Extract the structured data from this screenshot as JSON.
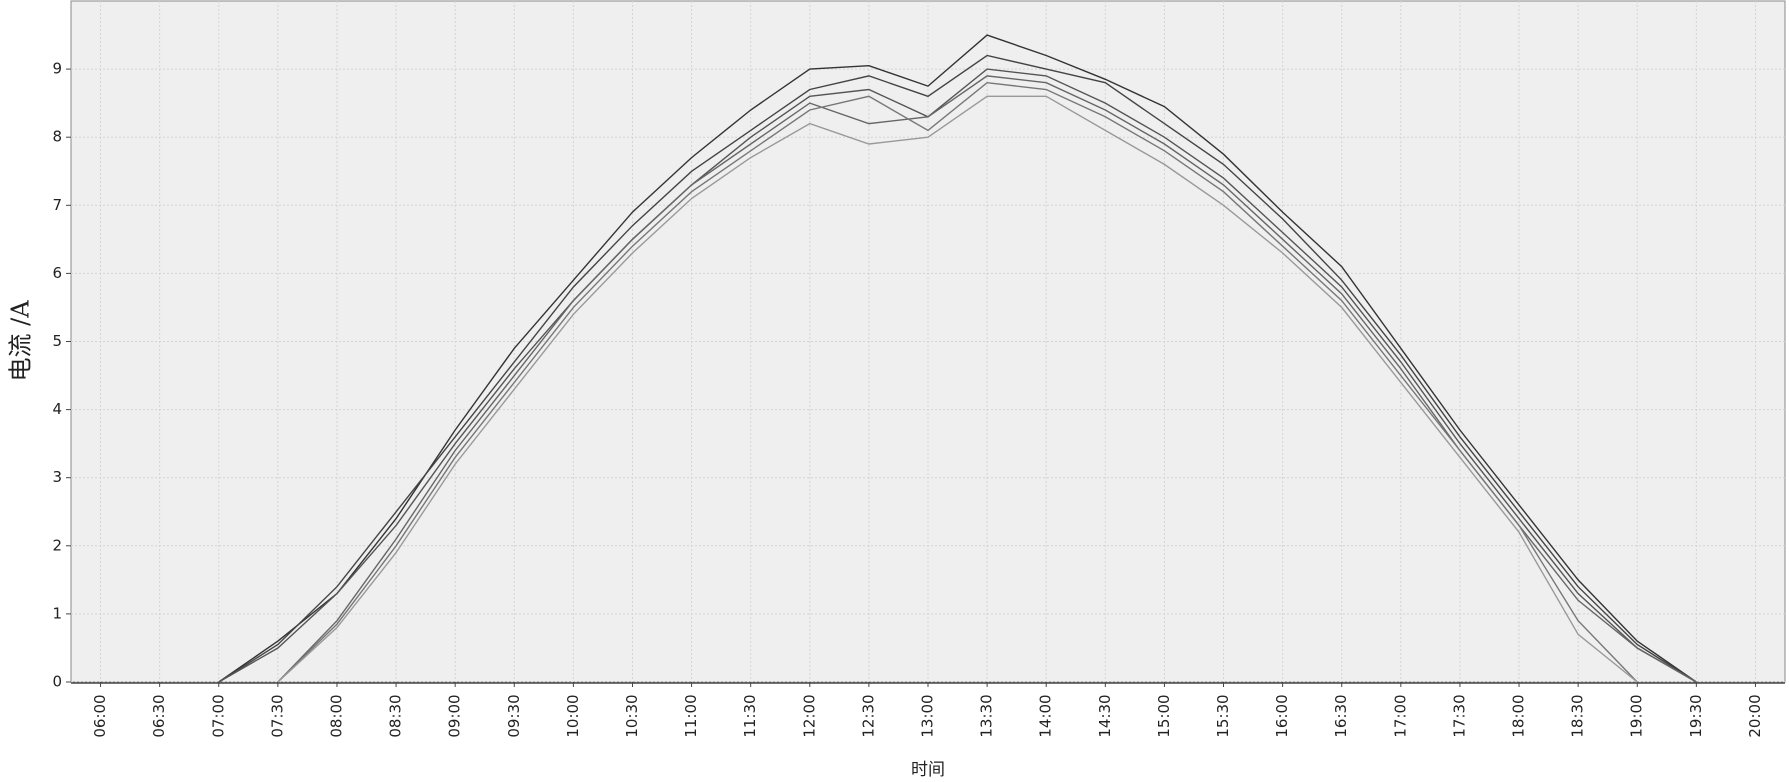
{
  "chart_data": {
    "type": "line",
    "y_label": "电流 /A",
    "x_label": "时间",
    "categories": [
      "06:00",
      "06:30",
      "07:00",
      "07:30",
      "08:00",
      "08:30",
      "09:00",
      "09:30",
      "10:00",
      "10:30",
      "11:00",
      "11:30",
      "12:00",
      "12:30",
      "13:00",
      "13:30",
      "14:00",
      "14:30",
      "15:00",
      "15:30",
      "16:00",
      "16:30",
      "17:00",
      "17:30",
      "18:00",
      "18:30",
      "19:00",
      "19:30",
      "20:00"
    ],
    "ylim": [
      0,
      10
    ],
    "yticks": [
      0,
      1,
      2,
      3,
      4,
      5,
      6,
      7,
      8,
      9
    ],
    "grid": true,
    "series": [
      {
        "color": "#333333",
        "values": [
          null,
          null,
          0,
          0.6,
          1.3,
          2.4,
          3.7,
          4.9,
          5.9,
          6.9,
          7.7,
          8.4,
          9.0,
          9.05,
          8.75,
          9.5,
          9.2,
          8.85,
          8.45,
          7.75,
          6.9,
          6.1,
          4.9,
          3.7,
          2.6,
          1.5,
          0.6,
          0,
          null
        ]
      },
      {
        "color": "#444444",
        "values": [
          null,
          null,
          0,
          0.55,
          1.4,
          2.5,
          3.6,
          4.7,
          5.8,
          6.7,
          7.5,
          8.1,
          8.7,
          8.9,
          8.6,
          9.2,
          9.0,
          8.8,
          8.2,
          7.6,
          6.8,
          5.9,
          4.8,
          3.6,
          2.5,
          1.4,
          0.55,
          0,
          null
        ]
      },
      {
        "color": "#555555",
        "values": [
          null,
          null,
          0,
          0.5,
          1.3,
          2.3,
          3.5,
          4.6,
          5.6,
          6.5,
          7.3,
          8.0,
          8.6,
          8.7,
          8.3,
          9.0,
          8.9,
          8.5,
          8.0,
          7.4,
          6.6,
          5.8,
          4.7,
          3.5,
          2.4,
          1.3,
          0.5,
          0,
          null
        ]
      },
      {
        "color": "#666666",
        "values": [
          null,
          null,
          null,
          0,
          0.9,
          2.1,
          3.4,
          4.5,
          5.6,
          6.5,
          7.3,
          7.9,
          8.5,
          8.2,
          8.3,
          8.9,
          8.8,
          8.4,
          7.9,
          7.3,
          6.5,
          5.7,
          4.6,
          3.4,
          2.3,
          1.2,
          0.5,
          0,
          null
        ]
      },
      {
        "color": "#777777",
        "values": [
          null,
          null,
          null,
          0,
          0.85,
          2.0,
          3.3,
          4.4,
          5.5,
          6.4,
          7.2,
          7.8,
          8.4,
          8.6,
          8.1,
          8.8,
          8.7,
          8.3,
          7.8,
          7.2,
          6.4,
          5.6,
          4.5,
          3.4,
          2.3,
          0.9,
          0,
          null,
          null
        ]
      },
      {
        "color": "#999999",
        "values": [
          null,
          null,
          null,
          0,
          0.8,
          1.9,
          3.2,
          4.3,
          5.4,
          6.3,
          7.1,
          7.7,
          8.2,
          7.9,
          8.0,
          8.6,
          8.6,
          8.1,
          7.6,
          7.0,
          6.3,
          5.5,
          4.4,
          3.3,
          2.2,
          0.7,
          0,
          null,
          null
        ]
      }
    ]
  }
}
